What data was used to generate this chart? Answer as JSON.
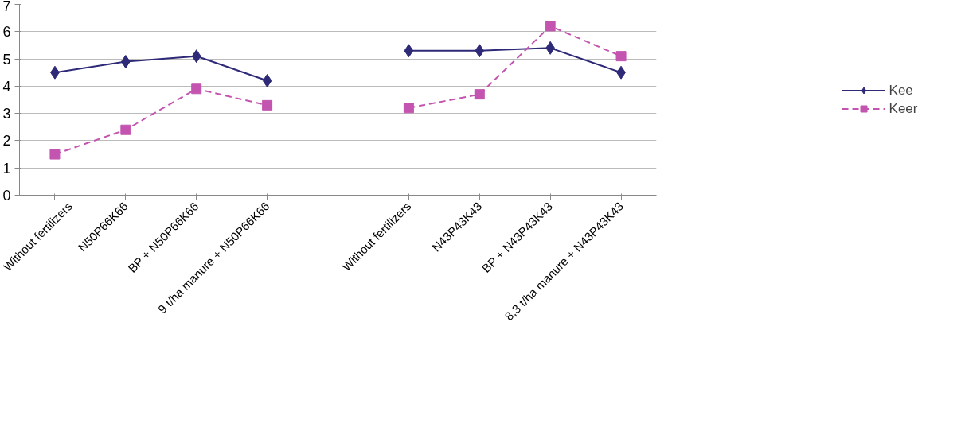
{
  "chart_data": {
    "type": "line",
    "categories": [
      "Without fertilizers",
      "N50P66K66",
      "BP + N50P66K66",
      "9 t/ha manure + N50P66K66",
      null,
      "Without fertilizers",
      "N43P43K43",
      "BP + N43P43K43",
      "8,3 t/ha manure + N43P43K43"
    ],
    "series": [
      {
        "name": "Kee",
        "color": "#2e2a78",
        "marker": "diamond",
        "line_style": "solid",
        "values": [
          4.5,
          4.9,
          5.1,
          4.2,
          null,
          5.3,
          5.3,
          5.4,
          4.5
        ]
      },
      {
        "name": "Keer",
        "color": "#c355b0",
        "marker": "square",
        "line_style": "dashed",
        "values": [
          1.5,
          2.4,
          3.9,
          3.3,
          null,
          3.2,
          3.7,
          6.2,
          5.1
        ]
      }
    ],
    "ylim": [
      0,
      7
    ],
    "yticks": [
      0,
      1,
      2,
      3,
      4,
      5,
      6,
      7
    ],
    "grid": "y",
    "legend": "right"
  }
}
